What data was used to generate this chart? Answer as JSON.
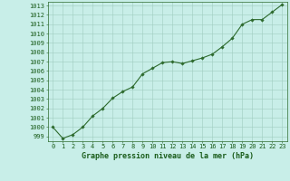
{
  "x": [
    0,
    1,
    2,
    3,
    4,
    5,
    6,
    7,
    8,
    9,
    10,
    11,
    12,
    13,
    14,
    15,
    16,
    17,
    18,
    19,
    20,
    21,
    22,
    23
  ],
  "y": [
    1000.0,
    998.8,
    999.2,
    1000.0,
    1001.2,
    1002.0,
    1003.1,
    1003.8,
    1004.3,
    1005.7,
    1006.3,
    1006.9,
    1007.0,
    1006.8,
    1007.1,
    1007.4,
    1007.8,
    1008.6,
    1009.5,
    1011.0,
    1011.5,
    1011.5,
    1012.3,
    1013.1
  ],
  "ylim_min": 998.5,
  "ylim_max": 1013.4,
  "xlim_min": -0.5,
  "xlim_max": 23.5,
  "yticks": [
    999,
    1000,
    1001,
    1002,
    1003,
    1004,
    1005,
    1006,
    1007,
    1008,
    1009,
    1010,
    1011,
    1012,
    1013
  ],
  "xticks": [
    0,
    1,
    2,
    3,
    4,
    5,
    6,
    7,
    8,
    9,
    10,
    11,
    12,
    13,
    14,
    15,
    16,
    17,
    18,
    19,
    20,
    21,
    22,
    23
  ],
  "line_color": "#2d6a2d",
  "marker": "D",
  "marker_size": 1.8,
  "line_width": 0.8,
  "bg_color": "#c8eee8",
  "grid_color": "#a0ccc0",
  "xlabel": "Graphe pression niveau de la mer (hPa)",
  "xlabel_color": "#1a5c1a",
  "xlabel_fontsize": 6.0,
  "tick_color": "#1a5c1a",
  "tick_fontsize": 5.0,
  "spine_color": "#2d6a2d",
  "fig_width": 3.2,
  "fig_height": 2.0,
  "dpi": 100
}
